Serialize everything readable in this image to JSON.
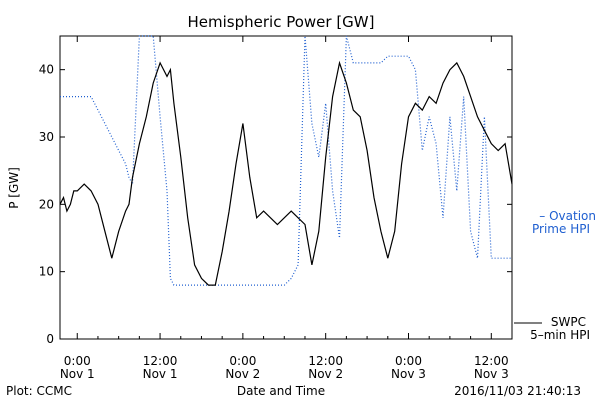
{
  "chart_data": {
    "type": "line",
    "title": "Hemispheric Power [GW]",
    "xlabel": "Date and Time",
    "ylabel": "P [GW]",
    "ylim": [
      0,
      45
    ],
    "yticks": [
      0,
      10,
      20,
      30,
      40
    ],
    "x_unit": "hours since 2016-11-01 00:00",
    "xlim": [
      -2.5,
      63
    ],
    "xticks": [
      {
        "x": 0,
        "line1": "0:00",
        "line2": "Nov 1"
      },
      {
        "x": 12,
        "line1": "12:00",
        "line2": "Nov 1"
      },
      {
        "x": 24,
        "line1": "0:00",
        "line2": "Nov 2"
      },
      {
        "x": 36,
        "line1": "12:00",
        "line2": "Nov 2"
      },
      {
        "x": 48,
        "line1": "0:00",
        "line2": "Nov 3"
      },
      {
        "x": 60,
        "line1": "12:00",
        "line2": "Nov 3"
      }
    ],
    "grid": false,
    "legend": "right",
    "series": [
      {
        "name": "SWPC 5-min HPI",
        "legend_line1": "SWPC",
        "legend_line2": "5–min HPI",
        "style": "solid",
        "color": "#000000",
        "x": [
          -2.5,
          -2,
          -1.5,
          -1,
          -0.5,
          0,
          1,
          2,
          3,
          4,
          5,
          6,
          7,
          7.5,
          8,
          9,
          10,
          11,
          12,
          13,
          13.5,
          14,
          15,
          16,
          17,
          18,
          19,
          20,
          21,
          22,
          23,
          24,
          25,
          26,
          27,
          28,
          29,
          30,
          31,
          32,
          33,
          34,
          35,
          36,
          37,
          38,
          39,
          40,
          41,
          42,
          43,
          44,
          45,
          46,
          47,
          48,
          49,
          50,
          51,
          52,
          53,
          54,
          55,
          56,
          57,
          58,
          59,
          60,
          61,
          62,
          63
        ],
        "y": [
          20,
          21,
          19,
          20,
          22,
          22,
          23,
          22,
          20,
          16,
          12,
          16,
          19,
          20,
          24,
          29,
          33,
          38,
          41,
          39,
          40,
          35,
          27,
          18,
          11,
          9,
          8,
          8,
          13,
          19,
          26,
          32,
          24,
          18,
          19,
          18,
          17,
          18,
          19,
          18,
          17,
          11,
          16,
          27,
          36,
          41,
          38,
          34,
          33,
          28,
          21,
          16,
          12,
          16,
          26,
          33,
          35,
          34,
          36,
          35,
          38,
          40,
          41,
          39,
          36,
          33,
          31,
          29,
          28,
          29,
          23
        ]
      },
      {
        "name": "Ovation Prime HPI",
        "legend_line1": "– Ovation",
        "legend_line2": "Prime HPI",
        "style": "dotted",
        "color": "#1f5fd0",
        "x": [
          -2.5,
          0,
          1,
          2,
          3,
          4,
          5,
          6,
          7,
          7.5,
          8,
          9,
          10,
          11,
          12,
          13,
          13.5,
          14,
          15,
          16,
          17,
          18,
          19,
          20,
          21,
          22,
          23,
          24,
          25,
          26,
          27,
          28,
          29,
          30,
          31,
          32,
          33,
          34,
          35,
          36,
          37,
          38,
          39,
          40,
          41,
          42,
          43,
          44,
          45,
          46,
          47,
          48,
          49,
          50,
          51,
          52,
          53,
          54,
          55,
          56,
          57,
          58,
          59,
          60,
          61,
          62,
          63
        ],
        "y": [
          36,
          36,
          36,
          36,
          34,
          32,
          30,
          28,
          26,
          24,
          23,
          45,
          45,
          45,
          33,
          22,
          9,
          8,
          8,
          8,
          8,
          8,
          8,
          8,
          8,
          8,
          8,
          8,
          8,
          8,
          8,
          8,
          8,
          8,
          9,
          11,
          45,
          32,
          27,
          35,
          22,
          15,
          45,
          41,
          41,
          41,
          41,
          41,
          42,
          42,
          42,
          42,
          40,
          28,
          33,
          29,
          18,
          33,
          22,
          36,
          16,
          12,
          33,
          12,
          12,
          12,
          12
        ]
      }
    ],
    "footer_left": "Plot: CCMC",
    "footer_right": "2016/11/03 21:40:13"
  }
}
